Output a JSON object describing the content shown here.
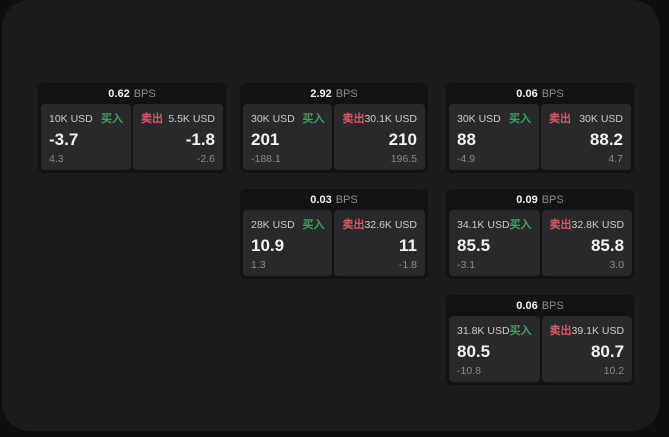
{
  "theme": {
    "backdrop": "#0e0e0f",
    "panel_bg": "#1c1c1d",
    "card_bg": "#131314",
    "tile_bg": "#29292b",
    "text_primary": "#f2f2f2",
    "text_secondary": "#cdcdcd",
    "text_muted": "#8c8c8c",
    "buy_color": "#3fa460",
    "sell_color": "#d85a6a"
  },
  "labels": {
    "bps_unit": "BPS",
    "buy": "买入",
    "sell": "卖出"
  },
  "cards": [
    {
      "grid": {
        "row": 1,
        "col": 1
      },
      "bps": "0.62",
      "buy": {
        "size": "10K USD",
        "value": "-3.7",
        "delta": "4.3"
      },
      "sell": {
        "size": "5.5K USD",
        "value": "-1.8",
        "delta": "-2.6"
      }
    },
    {
      "grid": {
        "row": 1,
        "col": 2
      },
      "bps": "2.92",
      "buy": {
        "size": "30K USD",
        "value": "201",
        "delta": "-188.1"
      },
      "sell": {
        "size": "30.1K USD",
        "value": "210",
        "delta": "196.5"
      }
    },
    {
      "grid": {
        "row": 1,
        "col": 3
      },
      "bps": "0.06",
      "buy": {
        "size": "30K USD",
        "value": "88",
        "delta": "-4.9"
      },
      "sell": {
        "size": "30K USD",
        "value": "88.2",
        "delta": "4.7"
      }
    },
    {
      "grid": {
        "row": 2,
        "col": 2
      },
      "bps": "0.03",
      "buy": {
        "size": "28K USD",
        "value": "10.9",
        "delta": "1.3"
      },
      "sell": {
        "size": "32.6K USD",
        "value": "11",
        "delta": "-1.8"
      }
    },
    {
      "grid": {
        "row": 2,
        "col": 3
      },
      "bps": "0.09",
      "buy": {
        "size": "34.1K USD",
        "value": "85.5",
        "delta": "-3.1"
      },
      "sell": {
        "size": "32.8K USD",
        "value": "85.8",
        "delta": "3.0"
      }
    },
    {
      "grid": {
        "row": 3,
        "col": 3
      },
      "bps": "0.06",
      "buy": {
        "size": "31.8K USD",
        "value": "80.5",
        "delta": "-10.8"
      },
      "sell": {
        "size": "39.1K USD",
        "value": "80.7",
        "delta": "10.2"
      }
    }
  ]
}
